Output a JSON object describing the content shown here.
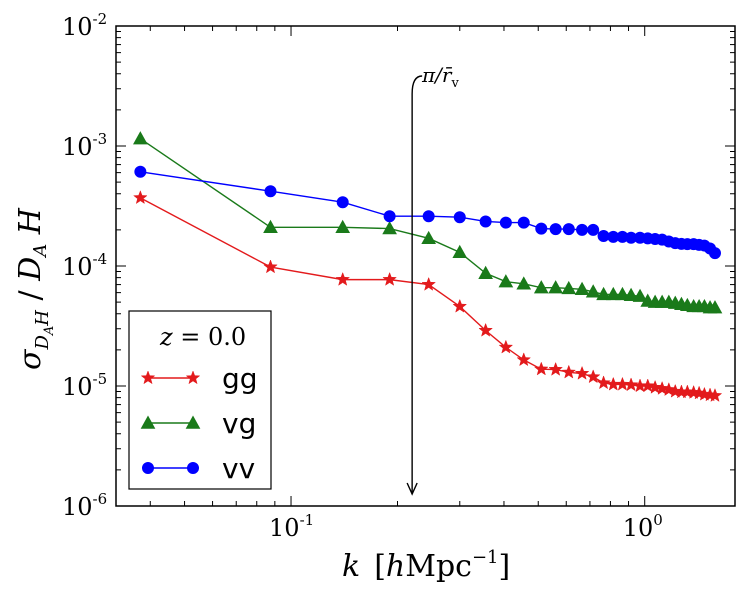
{
  "chart_data": {
    "type": "line",
    "title": "",
    "xscale": "log",
    "yscale": "log",
    "xlim": [
      0.032,
      1.8
    ],
    "ylim": [
      1e-06,
      0.01
    ],
    "xlabel": {
      "var": "k",
      "unit_pre": "[",
      "unit_h": "h",
      "unit_mid": "Mpc",
      "unit_sup": "−1",
      "unit_post": "]"
    },
    "ylabel": {
      "sigma": "σ",
      "sub": "D",
      "subsub": "A",
      "subh": "H",
      "slash": " / ",
      "DA": "D",
      "DAsub": "A",
      "H": " H"
    },
    "x_ticks": [
      {
        "value": 0.1,
        "base": "10",
        "exp": "-1"
      },
      {
        "value": 1.0,
        "base": "10",
        "exp": "0"
      }
    ],
    "y_ticks": [
      {
        "value": 1e-06,
        "base": "10",
        "exp": "-6"
      },
      {
        "value": 1e-05,
        "base": "10",
        "exp": "-5"
      },
      {
        "value": 0.0001,
        "base": "10",
        "exp": "-4"
      },
      {
        "value": 0.001,
        "base": "10",
        "exp": "-3"
      },
      {
        "value": 0.01,
        "base": "10",
        "exp": "-2"
      }
    ],
    "legend": {
      "title_var": "z",
      "title_eq": " = ",
      "title_val": "0.0",
      "placement": "lower-left"
    },
    "annotation": {
      "text_pi": "π/",
      "text_r": "r̄",
      "text_sub": "v",
      "x": 0.22
    },
    "series": [
      {
        "name": "gg",
        "color": "#e31a1c",
        "marker": "star",
        "points": [
          [
            0.0375,
            0.00037
          ],
          [
            0.0875,
            9.8e-05
          ],
          [
            0.14,
            7.7e-05
          ],
          [
            0.19,
            7.7e-05
          ],
          [
            0.245,
            7e-05
          ],
          [
            0.3,
            4.6e-05
          ],
          [
            0.355,
            2.9e-05
          ],
          [
            0.405,
            2.1e-05
          ],
          [
            0.455,
            1.65e-05
          ],
          [
            0.51,
            1.38e-05
          ],
          [
            0.56,
            1.37e-05
          ],
          [
            0.61,
            1.3e-05
          ],
          [
            0.665,
            1.27e-05
          ],
          [
            0.715,
            1.19e-05
          ],
          [
            0.765,
            1.06e-05
          ],
          [
            0.815,
            1.03e-05
          ],
          [
            0.865,
            1.03e-05
          ],
          [
            0.915,
            1.02e-05
          ],
          [
            0.97,
            1e-05
          ],
          [
            1.02,
            1e-05
          ],
          [
            1.07,
            9.7e-06
          ],
          [
            1.12,
            9.5e-06
          ],
          [
            1.17,
            9.3e-06
          ],
          [
            1.22,
            9e-06
          ],
          [
            1.27,
            8.9e-06
          ],
          [
            1.32,
            8.9e-06
          ],
          [
            1.375,
            8.8e-06
          ],
          [
            1.425,
            8.7e-06
          ],
          [
            1.475,
            8.5e-06
          ],
          [
            1.53,
            8.4e-06
          ],
          [
            1.58,
            8.3e-06
          ]
        ]
      },
      {
        "name": "vg",
        "color": "#1a7a1a",
        "marker": "triangle",
        "points": [
          [
            0.0375,
            0.00115
          ],
          [
            0.0875,
            0.00021
          ],
          [
            0.14,
            0.00021
          ],
          [
            0.19,
            0.000205
          ],
          [
            0.245,
            0.00017
          ],
          [
            0.3,
            0.00013
          ],
          [
            0.355,
            8.7e-05
          ],
          [
            0.405,
            7.4e-05
          ],
          [
            0.455,
            7.1e-05
          ],
          [
            0.51,
            6.6e-05
          ],
          [
            0.56,
            6.6e-05
          ],
          [
            0.61,
            6.5e-05
          ],
          [
            0.665,
            6.4e-05
          ],
          [
            0.715,
            6.1e-05
          ],
          [
            0.765,
            5.8e-05
          ],
          [
            0.815,
            5.8e-05
          ],
          [
            0.865,
            5.8e-05
          ],
          [
            0.915,
            5.7e-05
          ],
          [
            0.97,
            5.6e-05
          ],
          [
            1.02,
            5.1e-05
          ],
          [
            1.07,
            5e-05
          ],
          [
            1.12,
            5e-05
          ],
          [
            1.17,
            5e-05
          ],
          [
            1.22,
            4.9e-05
          ],
          [
            1.27,
            4.8e-05
          ],
          [
            1.32,
            4.7e-05
          ],
          [
            1.375,
            4.6e-05
          ],
          [
            1.425,
            4.6e-05
          ],
          [
            1.475,
            4.6e-05
          ],
          [
            1.53,
            4.5e-05
          ],
          [
            1.58,
            4.5e-05
          ]
        ]
      },
      {
        "name": "vv",
        "color": "#0000ff",
        "marker": "circle",
        "points": [
          [
            0.0375,
            0.00061
          ],
          [
            0.0875,
            0.00042
          ],
          [
            0.14,
            0.00034
          ],
          [
            0.19,
            0.00026
          ],
          [
            0.245,
            0.00026
          ],
          [
            0.3,
            0.000255
          ],
          [
            0.355,
            0.000235
          ],
          [
            0.405,
            0.00023
          ],
          [
            0.455,
            0.00023
          ],
          [
            0.51,
            0.000205
          ],
          [
            0.56,
            0.000203
          ],
          [
            0.61,
            0.000203
          ],
          [
            0.665,
            0.0002
          ],
          [
            0.715,
            0.0002
          ],
          [
            0.765,
            0.000178
          ],
          [
            0.815,
            0.000175
          ],
          [
            0.865,
            0.000175
          ],
          [
            0.915,
            0.000172
          ],
          [
            0.97,
            0.000172
          ],
          [
            1.02,
            0.00017
          ],
          [
            1.07,
            0.000168
          ],
          [
            1.12,
            0.000166
          ],
          [
            1.17,
            0.00016
          ],
          [
            1.22,
            0.000155
          ],
          [
            1.27,
            0.000153
          ],
          [
            1.32,
            0.000152
          ],
          [
            1.375,
            0.000152
          ],
          [
            1.425,
            0.00015
          ],
          [
            1.475,
            0.000148
          ],
          [
            1.53,
            0.00014
          ],
          [
            1.58,
            0.000128
          ]
        ]
      }
    ]
  }
}
